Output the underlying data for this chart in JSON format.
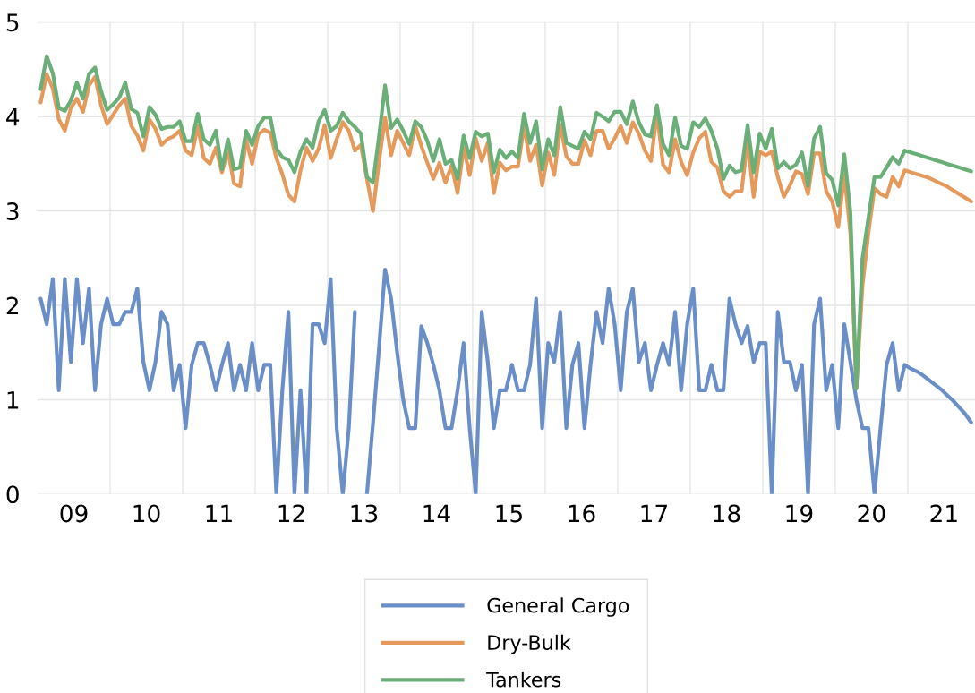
{
  "chart_data": {
    "type": "line",
    "x": [
      "2009-01",
      "2009-02",
      "2009-03",
      "2009-04",
      "2009-05",
      "2009-06",
      "2009-07",
      "2009-08",
      "2009-09",
      "2009-10",
      "2009-11",
      "2009-12",
      "2010-01",
      "2010-02",
      "2010-03",
      "2010-04",
      "2010-05",
      "2010-06",
      "2010-07",
      "2010-08",
      "2010-09",
      "2010-10",
      "2010-11",
      "2010-12",
      "2011-01",
      "2011-02",
      "2011-03",
      "2011-04",
      "2011-05",
      "2011-06",
      "2011-07",
      "2011-08",
      "2011-09",
      "2011-10",
      "2011-11",
      "2011-12",
      "2012-01",
      "2012-02",
      "2012-03",
      "2012-04",
      "2012-05",
      "2012-06",
      "2012-07",
      "2012-08",
      "2012-09",
      "2012-10",
      "2012-11",
      "2012-12",
      "2013-01",
      "2013-02",
      "2013-03",
      "2013-04",
      "2013-05",
      "2013-06",
      "2013-07",
      "2013-08",
      "2013-09",
      "2013-10",
      "2013-11",
      "2013-12",
      "2014-01",
      "2014-02",
      "2014-03",
      "2014-04",
      "2014-05",
      "2014-06",
      "2014-07",
      "2014-08",
      "2014-09",
      "2014-10",
      "2014-11",
      "2014-12",
      "2015-01",
      "2015-02",
      "2015-03",
      "2015-04",
      "2015-05",
      "2015-06",
      "2015-07",
      "2015-08",
      "2015-09",
      "2015-10",
      "2015-11",
      "2015-12",
      "2016-01",
      "2016-02",
      "2016-03",
      "2016-04",
      "2016-05",
      "2016-06",
      "2016-07",
      "2016-08",
      "2016-09",
      "2016-10",
      "2016-11",
      "2016-12",
      "2017-01",
      "2017-02",
      "2017-03",
      "2017-04",
      "2017-05",
      "2017-06",
      "2017-07",
      "2017-08",
      "2017-09",
      "2017-10",
      "2017-11",
      "2017-12",
      "2018-01",
      "2018-02",
      "2018-03",
      "2018-04",
      "2018-05",
      "2018-06",
      "2018-07",
      "2018-08",
      "2018-09",
      "2018-10",
      "2018-11",
      "2018-12",
      "2019-01",
      "2019-02",
      "2019-03",
      "2019-04",
      "2019-05",
      "2019-06",
      "2019-07",
      "2019-08",
      "2019-09",
      "2019-10",
      "2019-11",
      "2019-12",
      "2020-01",
      "2020-02",
      "2020-03",
      "2020-04",
      "2020-05",
      "2020-06",
      "2020-07",
      "2020-08",
      "2020-09",
      "2020-10",
      "2020-11",
      "2020-12",
      "2021-01",
      "2021-02",
      "2021-03",
      "2021-04",
      "2021-05",
      "2021-06",
      "2021-07",
      "2021-08",
      "2021-09",
      "2021-10",
      "2021-11"
    ],
    "series": [
      {
        "name": "General Cargo",
        "color": "#6a8fc8",
        "values": [
          2.07,
          1.8,
          2.28,
          1.1,
          2.28,
          1.4,
          2.28,
          1.6,
          2.18,
          1.1,
          1.8,
          2.07,
          1.8,
          1.8,
          1.93,
          1.93,
          2.18,
          1.4,
          1.1,
          1.4,
          1.93,
          1.8,
          1.1,
          1.37,
          0.7,
          1.37,
          1.6,
          1.6,
          1.37,
          1.1,
          1.37,
          1.6,
          1.1,
          1.37,
          1.1,
          1.6,
          1.1,
          1.37,
          1.37,
          0,
          1.1,
          1.93,
          0,
          1.1,
          0,
          1.8,
          1.8,
          1.6,
          2.28,
          0.7,
          0,
          0.7,
          1.93,
          null,
          0,
          0.75,
          1.55,
          2.38,
          2.07,
          1.5,
          1.0,
          0.7,
          0.7,
          1.78,
          1.6,
          1.37,
          1.1,
          0.7,
          0.7,
          1.1,
          1.6,
          0.7,
          0,
          1.93,
          1.4,
          0.7,
          1.1,
          1.1,
          1.37,
          1.1,
          1.1,
          1.37,
          2.07,
          0.7,
          1.6,
          1.4,
          1.93,
          0.7,
          1.37,
          1.6,
          0.7,
          1.37,
          1.93,
          1.6,
          2.18,
          1.8,
          1.1,
          1.93,
          2.18,
          1.4,
          1.6,
          1.1,
          1.37,
          1.6,
          1.37,
          1.93,
          1.1,
          1.8,
          2.18,
          1.1,
          1.1,
          1.37,
          1.1,
          1.1,
          2.07,
          1.8,
          1.6,
          1.78,
          1.4,
          1.6,
          1.6,
          0,
          1.93,
          1.4,
          1.4,
          1.1,
          1.37,
          0,
          1.8,
          2.07,
          1.1,
          1.37,
          0.7,
          1.8,
          1.4,
          1.0,
          0.7,
          0.7,
          0,
          0.7,
          1.37,
          1.6,
          1.1,
          1.37,
          1.33,
          1.3,
          1.26,
          1.21,
          1.16,
          1.11,
          1.05,
          0.99,
          0.92,
          0.85,
          0.76
        ]
      },
      {
        "name": "Dry-Bulk",
        "color": "#e59a5c",
        "values": [
          4.15,
          4.45,
          4.3,
          3.97,
          3.85,
          4.09,
          4.19,
          4.05,
          4.33,
          4.42,
          4.12,
          3.92,
          4.02,
          4.12,
          4.19,
          3.9,
          3.8,
          3.64,
          3.97,
          3.87,
          3.7,
          3.76,
          3.79,
          3.85,
          3.64,
          3.59,
          3.9,
          3.56,
          3.5,
          3.67,
          3.41,
          3.64,
          3.29,
          3.26,
          3.76,
          3.5,
          3.81,
          3.86,
          3.83,
          3.56,
          3.39,
          3.17,
          3.1,
          3.43,
          3.67,
          3.53,
          3.66,
          3.91,
          3.56,
          3.76,
          3.94,
          3.85,
          3.64,
          3.7,
          3.34,
          3.0,
          3.52,
          3.99,
          3.59,
          3.85,
          3.72,
          3.59,
          3.9,
          3.69,
          3.51,
          3.34,
          3.51,
          3.3,
          3.48,
          3.19,
          3.67,
          3.38,
          3.77,
          3.53,
          3.72,
          3.19,
          3.51,
          3.43,
          3.47,
          3.47,
          3.9,
          3.53,
          3.7,
          3.27,
          3.62,
          3.38,
          3.91,
          3.58,
          3.5,
          3.5,
          3.75,
          3.59,
          3.85,
          3.85,
          3.66,
          3.77,
          3.9,
          3.72,
          3.94,
          3.82,
          3.64,
          3.53,
          4.04,
          3.49,
          3.41,
          3.76,
          3.52,
          3.38,
          3.62,
          3.77,
          3.84,
          3.52,
          3.46,
          3.21,
          3.15,
          3.21,
          3.21,
          3.74,
          3.15,
          3.63,
          3.59,
          3.63,
          3.36,
          3.15,
          3.27,
          3.42,
          3.39,
          3.18,
          3.61,
          3.61,
          3.21,
          3.1,
          2.83,
          3.39,
          2.77,
          1.12,
          2.2,
          2.77,
          3.24,
          3.18,
          3.15,
          3.36,
          3.26,
          3.43,
          3.41,
          3.39,
          3.37,
          3.35,
          3.32,
          3.29,
          3.26,
          3.22,
          3.18,
          3.14,
          3.1
        ]
      },
      {
        "name": "Tankers",
        "color": "#6aaf78",
        "values": [
          4.29,
          4.64,
          4.46,
          4.09,
          4.06,
          4.17,
          4.36,
          4.19,
          4.45,
          4.52,
          4.27,
          4.07,
          4.13,
          4.2,
          4.36,
          4.08,
          4.04,
          3.79,
          4.1,
          4.02,
          3.87,
          3.89,
          3.89,
          3.95,
          3.74,
          3.74,
          4.03,
          3.76,
          3.7,
          3.85,
          3.44,
          3.76,
          3.44,
          3.46,
          3.85,
          3.7,
          3.9,
          3.99,
          3.99,
          3.66,
          3.57,
          3.54,
          3.41,
          3.63,
          3.76,
          3.67,
          3.95,
          4.07,
          3.85,
          3.9,
          4.04,
          3.95,
          3.89,
          3.82,
          3.36,
          3.3,
          3.79,
          4.33,
          3.88,
          3.97,
          3.85,
          3.71,
          3.95,
          3.89,
          3.74,
          3.53,
          3.76,
          3.5,
          3.54,
          3.34,
          3.8,
          3.56,
          3.84,
          3.79,
          3.82,
          3.41,
          3.65,
          3.56,
          3.63,
          3.56,
          4.03,
          3.72,
          3.95,
          3.44,
          3.76,
          3.59,
          4.1,
          3.72,
          3.69,
          3.66,
          3.84,
          3.76,
          4.04,
          4.0,
          3.95,
          4.05,
          4.05,
          3.92,
          4.16,
          3.94,
          3.81,
          3.79,
          4.12,
          3.71,
          3.59,
          3.99,
          3.69,
          3.66,
          3.94,
          3.89,
          3.98,
          3.85,
          3.66,
          3.34,
          3.48,
          3.41,
          3.43,
          3.91,
          3.41,
          3.82,
          3.66,
          3.87,
          3.45,
          3.52,
          3.45,
          3.49,
          3.62,
          3.27,
          3.77,
          3.89,
          3.4,
          3.33,
          3.06,
          3.6,
          3.0,
          1.12,
          2.49,
          2.93,
          3.36,
          3.36,
          3.46,
          3.57,
          3.5,
          3.64,
          3.62,
          3.6,
          3.58,
          3.56,
          3.54,
          3.52,
          3.5,
          3.48,
          3.46,
          3.44,
          3.42
        ]
      }
    ],
    "xlim": [
      "2009-01-01",
      "2021-12-05"
    ],
    "xticks": [
      {
        "value": "2009-07-01",
        "label": "09"
      },
      {
        "value": "2010-01-01",
        "label": null
      },
      {
        "value": "2010-07-01",
        "label": "10"
      },
      {
        "value": "2011-01-01",
        "label": null
      },
      {
        "value": "2011-07-01",
        "label": "11"
      },
      {
        "value": "2012-01-01",
        "label": null
      },
      {
        "value": "2012-07-01",
        "label": "12"
      },
      {
        "value": "2013-01-01",
        "label": null
      },
      {
        "value": "2013-07-01",
        "label": "13"
      },
      {
        "value": "2014-01-01",
        "label": null
      },
      {
        "value": "2014-07-01",
        "label": "14"
      },
      {
        "value": "2015-01-01",
        "label": null
      },
      {
        "value": "2015-07-01",
        "label": "15"
      },
      {
        "value": "2016-01-01",
        "label": null
      },
      {
        "value": "2016-07-01",
        "label": "16"
      },
      {
        "value": "2017-01-01",
        "label": null
      },
      {
        "value": "2017-07-01",
        "label": "17"
      },
      {
        "value": "2018-01-01",
        "label": null
      },
      {
        "value": "2018-07-01",
        "label": "18"
      },
      {
        "value": "2019-01-01",
        "label": null
      },
      {
        "value": "2019-07-01",
        "label": "19"
      },
      {
        "value": "2020-01-01",
        "label": null
      },
      {
        "value": "2020-07-01",
        "label": "20"
      },
      {
        "value": "2021-01-01",
        "label": null
      },
      {
        "value": "2021-07-01",
        "label": "21"
      }
    ],
    "ylim": [
      0,
      5
    ],
    "yticks": [
      0,
      1,
      2,
      3,
      4,
      5
    ],
    "grid": true,
    "legend": "bottom",
    "marker": "none",
    "line_style": "solid"
  }
}
